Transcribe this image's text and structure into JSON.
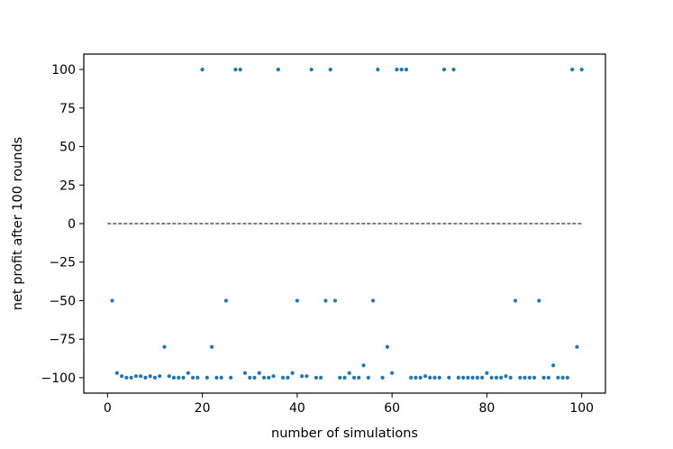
{
  "chart_data": {
    "type": "scatter",
    "title": "",
    "xlabel": "number of simulations",
    "ylabel": "net profit after 100 rounds",
    "xlim": [
      -5.0,
      105.0
    ],
    "ylim": [
      -110,
      110
    ],
    "xticks": [
      0,
      20,
      40,
      60,
      80,
      100
    ],
    "yticks": [
      -100,
      -75,
      -50,
      -25,
      0,
      25,
      50,
      75,
      100
    ],
    "xtick_labels": [
      "0",
      "20",
      "40",
      "60",
      "80",
      "100"
    ],
    "ytick_labels": [
      "−100",
      "−75",
      "−50",
      "−25",
      "0",
      "25",
      "50",
      "75",
      "100"
    ],
    "grid": false,
    "point_color": "#1f77b4",
    "reference_line": {
      "y": 0,
      "x_from": 0,
      "x_to": 100,
      "style": "dashed",
      "color": "#000000"
    },
    "x": [
      1,
      2,
      3,
      4,
      5,
      6,
      7,
      8,
      9,
      10,
      11,
      12,
      13,
      14,
      15,
      16,
      17,
      18,
      19,
      20,
      21,
      22,
      23,
      24,
      25,
      26,
      27,
      28,
      29,
      30,
      31,
      32,
      33,
      34,
      35,
      36,
      37,
      38,
      39,
      40,
      41,
      42,
      43,
      44,
      45,
      46,
      47,
      48,
      49,
      50,
      51,
      52,
      53,
      54,
      55,
      56,
      57,
      58,
      59,
      60,
      61,
      62,
      63,
      64,
      65,
      66,
      67,
      68,
      69,
      70,
      71,
      72,
      73,
      74,
      75,
      76,
      77,
      78,
      79,
      80,
      81,
      82,
      83,
      84,
      85,
      86,
      87,
      88,
      89,
      90,
      91,
      92,
      93,
      94,
      95,
      96,
      97,
      98,
      99,
      100
    ],
    "y": [
      -50,
      -97,
      -99,
      -100,
      -100,
      -99,
      -99,
      -100,
      -99,
      -100,
      -99,
      -80,
      -99,
      -100,
      -100,
      -100,
      -97,
      -100,
      -100,
      100,
      -100,
      -80,
      -100,
      -100,
      -50,
      -100,
      100,
      100,
      -97,
      -100,
      -100,
      -97,
      -100,
      -100,
      -99,
      100,
      -100,
      -100,
      -97,
      -50,
      -99,
      -99,
      100,
      -100,
      -100,
      -50,
      100,
      -50,
      -100,
      -100,
      -97,
      -100,
      -100,
      -92,
      -100,
      -50,
      100,
      -100,
      -80,
      -97,
      100,
      100,
      100,
      -100,
      -100,
      -100,
      -99,
      -100,
      -100,
      -100,
      100,
      -100,
      100,
      -100,
      -100,
      -100,
      -100,
      -100,
      -100,
      -97,
      -100,
      -100,
      -100,
      -99,
      -100,
      -50,
      -100,
      -100,
      -100,
      -100,
      -50,
      -100,
      -100,
      -92,
      -100,
      -100,
      -100,
      100,
      -80,
      100
    ]
  }
}
